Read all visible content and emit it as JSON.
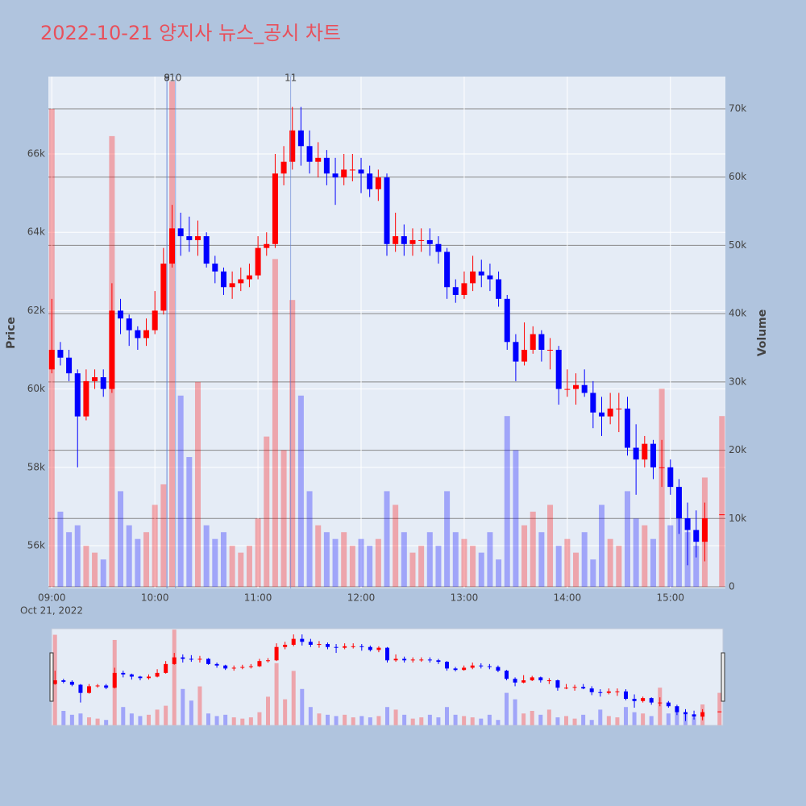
{
  "chart_data": {
    "type": "candlestick",
    "title": "2022-10-21 양지사 뉴스_공시 차트",
    "y_title": "Price",
    "y2_title": "Volume",
    "x_date_label": "Oct 21, 2022",
    "increasing_color": "#ff0000",
    "decreasing_color": "#0000ff",
    "x": [
      "09:00",
      "09:05",
      "09:10",
      "09:15",
      "09:20",
      "09:25",
      "09:30",
      "09:35",
      "09:40",
      "09:45",
      "09:50",
      "09:55",
      "10:00",
      "10:05",
      "10:10",
      "10:15",
      "10:20",
      "10:25",
      "10:30",
      "10:35",
      "10:40",
      "10:45",
      "10:50",
      "10:55",
      "11:00",
      "11:05",
      "11:10",
      "11:15",
      "11:20",
      "11:25",
      "11:30",
      "11:35",
      "11:40",
      "11:45",
      "11:50",
      "11:55",
      "12:00",
      "12:05",
      "12:10",
      "12:15",
      "12:20",
      "12:25",
      "12:30",
      "12:35",
      "12:40",
      "12:45",
      "12:50",
      "12:55",
      "13:00",
      "13:05",
      "13:10",
      "13:15",
      "13:20",
      "13:25",
      "13:30",
      "13:35",
      "13:40",
      "13:45",
      "13:50",
      "13:55",
      "14:00",
      "14:05",
      "14:10",
      "14:15",
      "14:20",
      "14:25",
      "14:30",
      "14:35",
      "14:40",
      "14:45",
      "14:50",
      "14:55",
      "15:00",
      "15:05",
      "15:10",
      "15:15",
      "15:20",
      "15:30"
    ],
    "open": [
      60500,
      61000,
      60800,
      60400,
      59300,
      60200,
      60300,
      60000,
      62000,
      61800,
      61500,
      61300,
      61500,
      62000,
      63200,
      64100,
      63900,
      63800,
      63900,
      63200,
      63000,
      62600,
      62700,
      62800,
      62900,
      63600,
      63700,
      65500,
      65800,
      66600,
      66200,
      65800,
      65900,
      65500,
      65400,
      65600,
      65600,
      65500,
      65100,
      65400,
      63700,
      63900,
      63700,
      63800,
      63800,
      63700,
      63500,
      62600,
      62400,
      62700,
      63000,
      62900,
      62800,
      62300,
      61200,
      60700,
      61000,
      61400,
      61000,
      61000,
      60000,
      60000,
      60100,
      59900,
      59400,
      59300,
      59500,
      59500,
      58500,
      58200,
      58600,
      58000,
      58000,
      57500,
      56700,
      56400,
      56100,
      56800
    ],
    "high": [
      62300,
      61200,
      61000,
      60500,
      60500,
      60500,
      60500,
      62700,
      62300,
      61900,
      61600,
      61800,
      62500,
      63600,
      64700,
      64500,
      64400,
      64300,
      64000,
      63400,
      63100,
      63000,
      63100,
      63200,
      63900,
      64000,
      66000,
      66200,
      67200,
      67200,
      66600,
      66300,
      66100,
      65900,
      66000,
      66000,
      65900,
      65700,
      65600,
      65500,
      64500,
      64200,
      64100,
      64100,
      64100,
      63900,
      63600,
      62800,
      63000,
      63400,
      63300,
      63200,
      63000,
      62400,
      61400,
      61700,
      61600,
      61500,
      61300,
      61100,
      60500,
      60400,
      60500,
      60200,
      59800,
      59900,
      59900,
      59800,
      59100,
      58800,
      58700,
      58700,
      58200,
      57700,
      57100,
      56900,
      57100,
      56800
    ],
    "low": [
      60400,
      60600,
      60200,
      58000,
      59200,
      60000,
      59800,
      59900,
      61400,
      61100,
      61000,
      61100,
      61400,
      61900,
      63100,
      63400,
      63500,
      63400,
      63100,
      62700,
      62400,
      62300,
      62500,
      62600,
      62800,
      63400,
      63600,
      65200,
      65600,
      65700,
      65500,
      65400,
      65200,
      64700,
      65200,
      65300,
      65000,
      64900,
      64800,
      63400,
      63500,
      63400,
      63400,
      63500,
      63400,
      63200,
      62300,
      62200,
      62300,
      62500,
      62600,
      62500,
      62100,
      61000,
      60200,
      60600,
      60900,
      60700,
      60500,
      59600,
      59800,
      59600,
      59800,
      59000,
      58800,
      59100,
      58900,
      58300,
      57300,
      58000,
      57700,
      57500,
      57300,
      56300,
      55500,
      55700,
      55600,
      56800
    ],
    "close": [
      61000,
      60800,
      60400,
      59300,
      60200,
      60300,
      60000,
      62000,
      61800,
      61500,
      61300,
      61500,
      62000,
      63200,
      64100,
      63900,
      63800,
      63900,
      63200,
      63000,
      62600,
      62700,
      62800,
      62900,
      63600,
      63700,
      65500,
      65800,
      66600,
      66200,
      65800,
      65900,
      65500,
      65400,
      65600,
      65600,
      65500,
      65100,
      65400,
      63700,
      63900,
      63700,
      63800,
      63800,
      63700,
      63500,
      62600,
      62400,
      62700,
      63000,
      62900,
      62800,
      62300,
      61200,
      60700,
      61000,
      61400,
      61000,
      61000,
      60000,
      60000,
      60100,
      59900,
      59400,
      59300,
      59500,
      59500,
      58500,
      58200,
      58600,
      58000,
      58000,
      57500,
      56700,
      56400,
      56100,
      56700,
      56800
    ],
    "volume": [
      70000,
      11000,
      8000,
      9000,
      6000,
      5000,
      4000,
      66000,
      14000,
      9000,
      7000,
      8000,
      12000,
      15000,
      74000,
      28000,
      19000,
      30000,
      9000,
      7000,
      8000,
      6000,
      5000,
      6000,
      10000,
      22000,
      48000,
      20000,
      42000,
      28000,
      14000,
      9000,
      8000,
      7000,
      8000,
      6000,
      7000,
      6000,
      7000,
      14000,
      12000,
      8000,
      5000,
      6000,
      8000,
      6000,
      14000,
      8000,
      7000,
      6000,
      5000,
      8000,
      4000,
      25000,
      20000,
      9000,
      11000,
      8000,
      12000,
      6000,
      7000,
      5000,
      8000,
      4000,
      12000,
      7000,
      6000,
      14000,
      10000,
      9000,
      7000,
      29000,
      9000,
      12000,
      8000,
      6000,
      16000,
      25000
    ],
    "xlim": [
      "08:58",
      "15:32"
    ],
    "xticks": [
      "09:00",
      "10:00",
      "11:00",
      "12:00",
      "13:00",
      "14:00",
      "15:00"
    ],
    "ylim": [
      54910,
      67975
    ],
    "yticks": [
      {
        "value": 56000,
        "label": "56k"
      },
      {
        "value": 58000,
        "label": "58k"
      },
      {
        "value": 60000,
        "label": "60k"
      },
      {
        "value": 62000,
        "label": "62k"
      },
      {
        "value": 64000,
        "label": "64k"
      },
      {
        "value": 66000,
        "label": "66k"
      }
    ],
    "y2lim": [
      -236,
      74720
    ],
    "y2ticks": [
      0,
      {
        "value": 10000,
        "label": "10k"
      },
      {
        "value": 20000,
        "label": "20k"
      },
      {
        "value": 30000,
        "label": "30k"
      },
      {
        "value": 40000,
        "label": "40k"
      },
      {
        "value": 50000,
        "label": "50k"
      },
      {
        "value": 60000,
        "label": "60k"
      },
      {
        "value": 70000,
        "label": "70k"
      }
    ],
    "annotations": [
      {
        "x": "10:07",
        "label": "8"
      },
      {
        "x": "10:07",
        "label": "9"
      },
      {
        "x": "10:12",
        "label": "10"
      },
      {
        "x": "11:19",
        "label": "11"
      }
    ],
    "rangeslider": true
  }
}
